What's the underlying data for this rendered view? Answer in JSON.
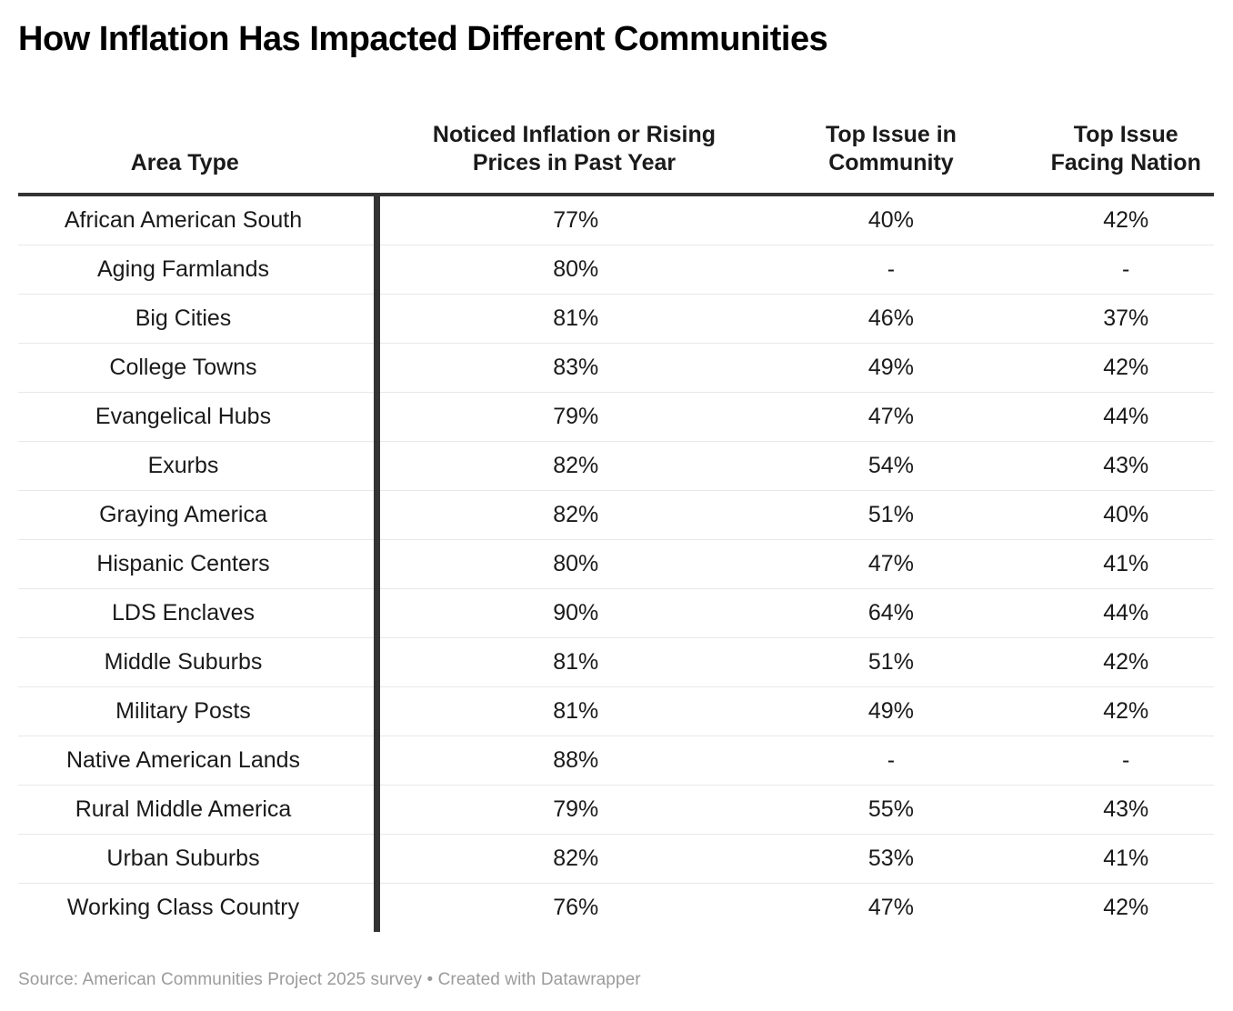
{
  "title": "How Inflation Has Impacted Different Communities",
  "footer": {
    "text": "Source: American Communities Project 2025 survey • Created with Datawrapper"
  },
  "colors": {
    "background": "#ffffff",
    "title_text": "#000000",
    "body_text": "#1a1a1a",
    "border_dark": "#333333",
    "border_light": "#e8e8e8",
    "footer_text": "#9b9b9b"
  },
  "chart_data": {
    "type": "table",
    "title": "How Inflation Has Impacted Different Communities",
    "columns": [
      {
        "id": "area",
        "label": "Area Type",
        "lines": [
          "Area Type"
        ]
      },
      {
        "id": "noticed",
        "label": "Noticed Inflation or Rising Prices in Past Year",
        "lines": [
          "Noticed Inflation or Rising",
          "Prices in Past Year"
        ]
      },
      {
        "id": "community",
        "label": "Top Issue in Community",
        "lines": [
          "Top Issue in",
          "Community"
        ]
      },
      {
        "id": "nation",
        "label": "Top Issue Facing Nation",
        "lines": [
          "Top Issue",
          "Facing Nation"
        ]
      }
    ],
    "rows": [
      [
        "African American South",
        "77%",
        "40%",
        "42%"
      ],
      [
        "Aging Farmlands",
        "80%",
        "-",
        "-"
      ],
      [
        "Big Cities",
        "81%",
        "46%",
        "37%"
      ],
      [
        "College Towns",
        "83%",
        "49%",
        "42%"
      ],
      [
        "Evangelical Hubs",
        "79%",
        "47%",
        "44%"
      ],
      [
        "Exurbs",
        "82%",
        "54%",
        "43%"
      ],
      [
        "Graying America",
        "82%",
        "51%",
        "40%"
      ],
      [
        "Hispanic Centers",
        "80%",
        "47%",
        "41%"
      ],
      [
        "LDS Enclaves",
        "90%",
        "64%",
        "44%"
      ],
      [
        "Middle Suburbs",
        "81%",
        "51%",
        "42%"
      ],
      [
        "Military Posts",
        "81%",
        "49%",
        "42%"
      ],
      [
        "Native American Lands",
        "88%",
        "-",
        "-"
      ],
      [
        "Rural Middle America",
        "79%",
        "55%",
        "43%"
      ],
      [
        "Urban Suburbs",
        "82%",
        "53%",
        "41%"
      ],
      [
        "Working Class Country",
        "76%",
        "47%",
        "42%"
      ]
    ],
    "layout_hints": {
      "column_alignment": [
        "center",
        "center",
        "center",
        "center"
      ],
      "header_rule": "thick dark line below header row",
      "first_column_divider": "thick dark vertical bar between Area Type and data columns",
      "row_separators": "thin light gray lines",
      "missing_value_symbol": "-"
    }
  }
}
